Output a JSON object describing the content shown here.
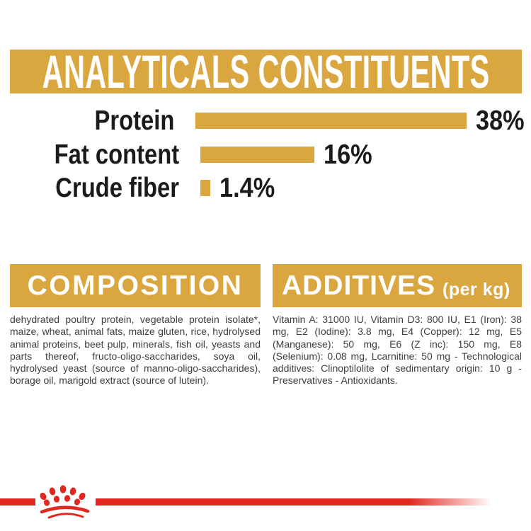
{
  "header": {
    "title": "ANALYTICALS CONSTITUENTS"
  },
  "chart_data": {
    "type": "bar",
    "orientation": "horizontal",
    "title": "ANALYTICALS CONSTITUENTS",
    "categories": [
      "Protein",
      "Fat content",
      "Crude fiber"
    ],
    "values": [
      38,
      16,
      1.4
    ],
    "value_labels": [
      "38%",
      "16%",
      "1.4%"
    ],
    "unit": "%",
    "xlim": [
      0,
      38
    ],
    "grid": false,
    "legend": false,
    "bar_color": "#D9A640",
    "label_color": "#1C1B19"
  },
  "sections": {
    "composition": {
      "title": "COMPOSITION",
      "body": "dehydrated poultry protein, vegetable protein isolate*, maize, wheat, animal fats, maize gluten, rice, hydrolysed animal proteins, beet pulp, minerals, fish oil, yeasts and parts thereof, fructo-oligo-saccharides, soya oil, hydrolysed yeast (source of manno-oligo-saccharides), borage oil, marigold extract (source of lutein)."
    },
    "additives": {
      "title": "ADDITIVES",
      "subtitle": "(per kg)",
      "body": "Vitamin A: 31000 IU, Vitamin D3: 800 IU, E1 (Iron): 38 mg, E2 (Iodine): 3.8 mg, E4 (Copper): 12 mg, E5 (Manganese): 50 mg, E6 (Z inc): 150 mg, E8 (Selenium): 0.08 mg, Lcarnitine: 50 mg - Technological additives: Clinoptilolite of sedimentary origin: 10 g - Preservatives - Antioxidants."
    }
  },
  "footer": {
    "logo": "royal-canin-paw-crown-logo"
  },
  "colors": {
    "gold": "#D9A640",
    "red": "#E02720",
    "text_dark": "#1C1B19",
    "text_gray": "#3E3E3D",
    "banner_text": "#FFFFFF"
  }
}
